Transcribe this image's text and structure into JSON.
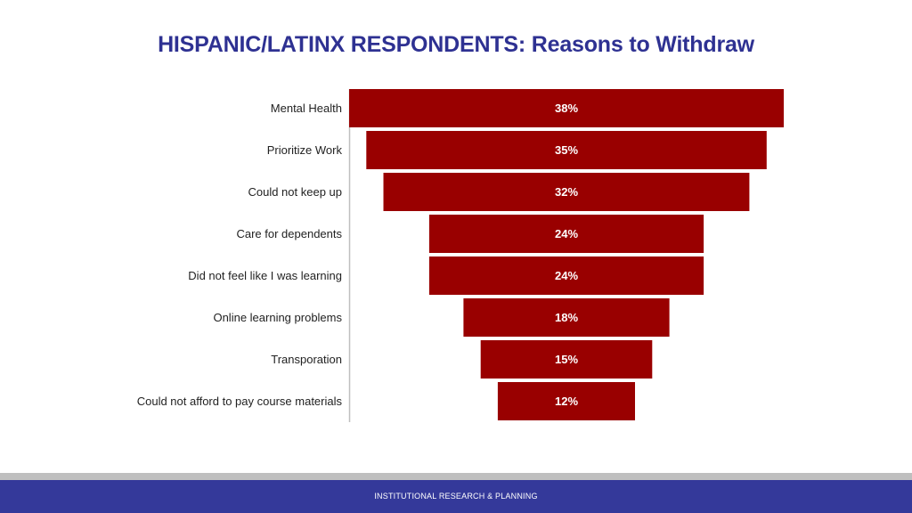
{
  "slide": {
    "title_main": "HISPANIC/LATINX RESPONDENTS:",
    "title_sub": "Reasons to Withdraw",
    "footer": "INSTITUTIONAL RESEARCH & PLANNING"
  },
  "colors": {
    "title": "#2E3192",
    "bar": "#990000",
    "bar_label": "#FFFFFF",
    "category_label": "#222222",
    "axis": "#BFBFBF",
    "footer_gray": "#BFBFBF",
    "footer_bar": "#34399A"
  },
  "chart_data": {
    "type": "bar",
    "orientation": "horizontal",
    "style": "funnel",
    "categories": [
      "Mental Health",
      "Prioritize Work",
      "Could not keep up",
      "Care for dependents",
      "Did not feel like I was learning",
      "Online learning problems",
      "Transporation",
      "Could not afford to pay course materials"
    ],
    "values": [
      38,
      35,
      32,
      24,
      24,
      18,
      15,
      12
    ],
    "value_labels": [
      "38%",
      "35%",
      "32%",
      "24%",
      "24%",
      "18%",
      "15%",
      "12%"
    ],
    "title": "",
    "xlabel": "",
    "ylabel": "",
    "grid": false,
    "legend": "none"
  }
}
